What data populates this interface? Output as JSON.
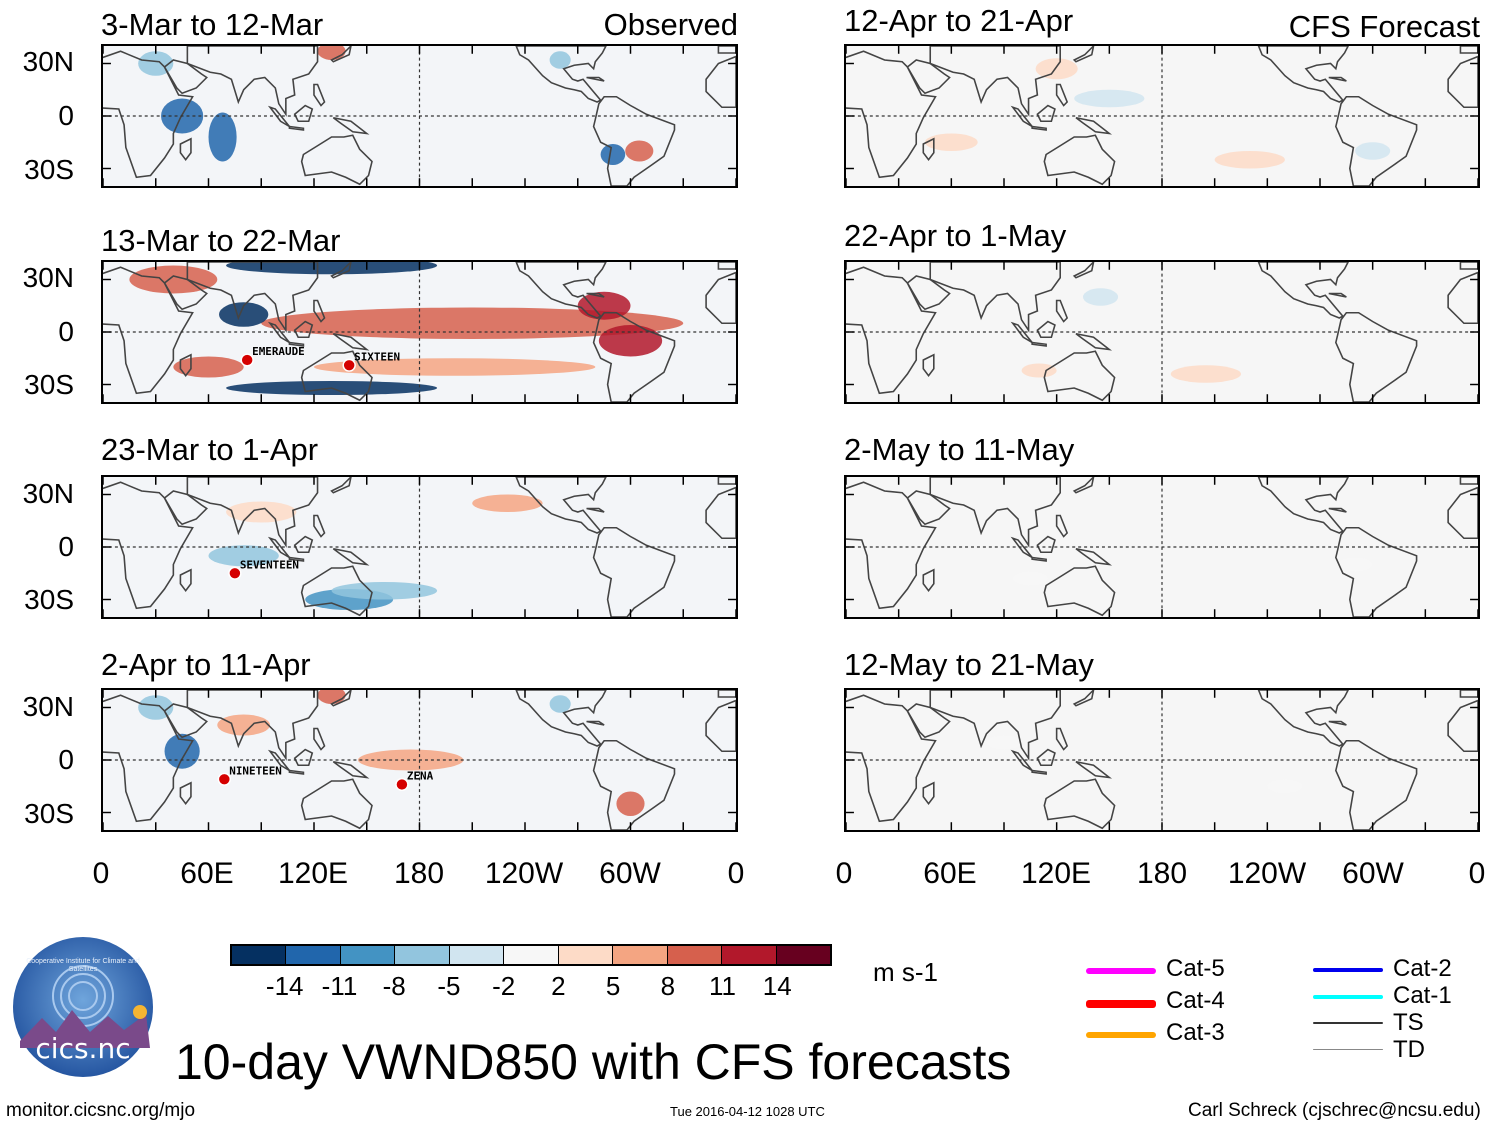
{
  "figure": {
    "title": "10-day VWND850 with CFS forecasts",
    "units": "m s-1",
    "footer_left": "monitor.cicsnc.org/mjo",
    "footer_center": "Tue 2016-04-12 1028 UTC",
    "footer_right": "Carl Schreck (cjschrec@ncsu.edu)",
    "logo": {
      "text": "cics.nc",
      "ring_text": "Cooperative Institute for Climate and Satellites"
    }
  },
  "chart_data": {
    "type": "heatmap",
    "variable": "850-hPa meridional wind anomaly, 10-day means",
    "x_ticks": [
      "0",
      "60E",
      "120E",
      "180",
      "120W",
      "60W",
      "0"
    ],
    "y_ticks": [
      "30N",
      "0",
      "30S"
    ],
    "columns": [
      {
        "tag": "Observed",
        "panels": [
          "3-Mar to 12-Mar",
          "13-Mar to 22-Mar",
          "23-Mar to 1-Apr",
          "2-Apr to 11-Apr"
        ]
      },
      {
        "tag": "CFS Forecast",
        "panels": [
          "12-Apr to 21-Apr",
          "22-Apr to 1-May",
          "2-May to 11-May",
          "12-May to 21-May"
        ]
      }
    ],
    "storms": [
      {
        "panel": "13-Mar to 22-Mar",
        "names": [
          "EMERAUDE",
          "SIXTEEN"
        ]
      },
      {
        "panel": "23-Mar to 1-Apr",
        "names": [
          "SEVENTEEN"
        ]
      },
      {
        "panel": "2-Apr to 11-Apr",
        "names": [
          "NINETEEN",
          "ZENA"
        ]
      }
    ],
    "colorbar": {
      "levels": [
        "-14",
        "-11",
        "-8",
        "-5",
        "-2",
        "2",
        "5",
        "8",
        "11",
        "14"
      ],
      "colors": [
        "#053061",
        "#2166ac",
        "#4393c3",
        "#92c5de",
        "#d1e5f0",
        "#f7f7f7",
        "#fddbc7",
        "#f4a582",
        "#d6604d",
        "#b2182b",
        "#67001f"
      ]
    },
    "track_legend": [
      {
        "label": "Cat-5",
        "color": "#ff00ff"
      },
      {
        "label": "Cat-4",
        "color": "#ff0000"
      },
      {
        "label": "Cat-3",
        "color": "#ffa500"
      },
      {
        "label": "Cat-2",
        "color": "#0000ee"
      },
      {
        "label": "Cat-1",
        "color": "#00ffff"
      },
      {
        "label": "TS",
        "color": "#333333"
      },
      {
        "label": "TD",
        "color": "#888888"
      }
    ]
  }
}
